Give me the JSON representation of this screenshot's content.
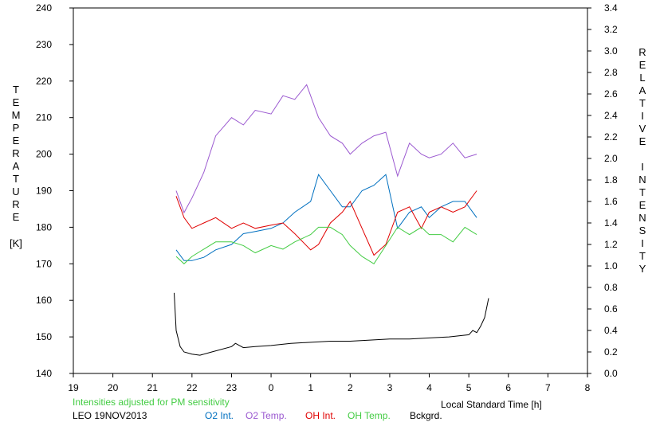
{
  "chart_data": {
    "type": "line",
    "xlabel": "Local Standard Time [h]",
    "ylabel": "TEMPERATURE",
    "ylabel_unit": "[K]",
    "y2label": "RELATIVE INTENSITY",
    "xlim": [
      19,
      32
    ],
    "x_tick_values": [
      19,
      20,
      21,
      22,
      23,
      24,
      25,
      26,
      27,
      28,
      29,
      30,
      31,
      32
    ],
    "x_tick_labels": [
      "19",
      "20",
      "21",
      "22",
      "23",
      "0",
      "1",
      "2",
      "3",
      "4",
      "5",
      "6",
      "7",
      "8"
    ],
    "ylim": [
      140,
      240
    ],
    "y_ticks": [
      140,
      150,
      160,
      170,
      180,
      190,
      200,
      210,
      220,
      230,
      240
    ],
    "y2lim": [
      0.0,
      3.4
    ],
    "y2_tick_labels": [
      "0.0",
      "0.2",
      "0.4",
      "0.6",
      "0.8",
      "1.0",
      "1.2",
      "1.4",
      "1.6",
      "1.8",
      "2.0",
      "2.2",
      "2.4",
      "2.6",
      "2.8",
      "3.0",
      "3.2",
      "3.4"
    ],
    "note": "Intensities adjusted for PM sensitivity",
    "station": "LEO 19NOV2013",
    "series": [
      {
        "name": "O2 Int.",
        "color": "#0070c0",
        "axis": "right",
        "x": [
          21.6,
          21.8,
          22.0,
          22.3,
          22.6,
          23.0,
          23.3,
          23.6,
          24.0,
          24.3,
          24.6,
          25.0,
          25.2,
          25.5,
          25.8,
          26.0,
          26.3,
          26.6,
          26.9,
          27.2,
          27.5,
          27.8,
          28.0,
          28.3,
          28.6,
          28.9,
          29.2
        ],
        "values": [
          1.15,
          1.05,
          1.05,
          1.08,
          1.15,
          1.2,
          1.3,
          1.32,
          1.35,
          1.4,
          1.5,
          1.6,
          1.85,
          1.7,
          1.55,
          1.55,
          1.7,
          1.75,
          1.85,
          1.35,
          1.5,
          1.55,
          1.45,
          1.55,
          1.6,
          1.6,
          1.45
        ]
      },
      {
        "name": "O2 Temp.",
        "color": "#9b59d0",
        "axis": "left",
        "x": [
          21.6,
          21.8,
          22.0,
          22.3,
          22.6,
          23.0,
          23.3,
          23.6,
          24.0,
          24.3,
          24.6,
          24.9,
          25.2,
          25.5,
          25.8,
          26.0,
          26.3,
          26.6,
          26.9,
          27.2,
          27.5,
          27.8,
          28.0,
          28.3,
          28.6,
          28.9,
          29.2
        ],
        "values": [
          190,
          184,
          188,
          195,
          205,
          210,
          208,
          212,
          211,
          216,
          215,
          219,
          210,
          205,
          203,
          200,
          203,
          205,
          206,
          194,
          203,
          200,
          199,
          200,
          203,
          199,
          200
        ]
      },
      {
        "name": "OH Int.",
        "color": "#e00000",
        "axis": "right",
        "x": [
          21.6,
          21.8,
          22.0,
          22.3,
          22.6,
          23.0,
          23.3,
          23.6,
          24.0,
          24.3,
          24.6,
          25.0,
          25.2,
          25.5,
          25.8,
          26.0,
          26.3,
          26.6,
          26.9,
          27.2,
          27.5,
          27.8,
          28.0,
          28.3,
          28.6,
          28.9,
          29.2
        ],
        "values": [
          1.65,
          1.45,
          1.35,
          1.4,
          1.45,
          1.35,
          1.4,
          1.35,
          1.38,
          1.4,
          1.3,
          1.15,
          1.2,
          1.4,
          1.5,
          1.6,
          1.35,
          1.1,
          1.2,
          1.5,
          1.55,
          1.35,
          1.5,
          1.55,
          1.5,
          1.55,
          1.7
        ]
      },
      {
        "name": "OH Temp.",
        "color": "#44cc44",
        "axis": "left",
        "x": [
          21.6,
          21.8,
          22.0,
          22.3,
          22.6,
          23.0,
          23.3,
          23.6,
          24.0,
          24.3,
          24.6,
          25.0,
          25.2,
          25.5,
          25.8,
          26.0,
          26.3,
          26.6,
          26.9,
          27.2,
          27.5,
          27.8,
          28.0,
          28.3,
          28.6,
          28.9,
          29.2
        ],
        "values": [
          172,
          170,
          172,
          174,
          176,
          176,
          175,
          173,
          175,
          174,
          176,
          178,
          180,
          180,
          178,
          175,
          172,
          170,
          175,
          180,
          178,
          180,
          178,
          178,
          176,
          180,
          178
        ]
      },
      {
        "name": "Bckgrd.",
        "color": "#000000",
        "axis": "right",
        "x": [
          21.55,
          21.6,
          21.7,
          21.8,
          22.0,
          22.2,
          22.5,
          23.0,
          23.1,
          23.3,
          23.6,
          24.0,
          24.5,
          25.0,
          25.5,
          26.0,
          26.5,
          27.0,
          27.5,
          28.0,
          28.5,
          29.0,
          29.1,
          29.2,
          29.3,
          29.4,
          29.5
        ],
        "values": [
          0.75,
          0.4,
          0.25,
          0.2,
          0.18,
          0.17,
          0.2,
          0.25,
          0.28,
          0.24,
          0.25,
          0.26,
          0.28,
          0.29,
          0.3,
          0.3,
          0.31,
          0.32,
          0.32,
          0.33,
          0.34,
          0.36,
          0.4,
          0.38,
          0.44,
          0.52,
          0.7
        ]
      }
    ]
  }
}
